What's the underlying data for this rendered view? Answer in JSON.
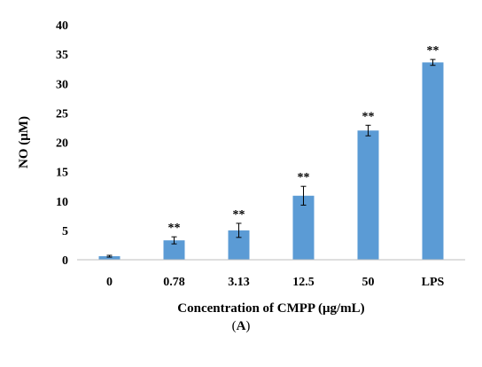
{
  "chart_data": {
    "type": "bar",
    "categories": [
      "0",
      "0.78",
      "3.13",
      "12.5",
      "50",
      "LPS"
    ],
    "values": [
      0.6,
      3.3,
      5.0,
      10.9,
      22.0,
      33.6
    ],
    "errors": [
      0.15,
      0.6,
      1.2,
      1.6,
      0.9,
      0.5
    ],
    "annotations": [
      "",
      "**",
      "**",
      "**",
      "**",
      "**"
    ],
    "xlabel": "Concentration of CMPP (μg/mL)",
    "ylabel": "NO (μM)",
    "ylim": [
      0,
      40
    ],
    "yticks": [
      "0",
      "5",
      "10",
      "15",
      "20",
      "25",
      "30",
      "35",
      "40"
    ],
    "bar_color": "#5b9bd5",
    "grid": false,
    "legend": "none"
  },
  "panel_label": {
    "open": "(",
    "letter": "A",
    "close": ")"
  }
}
